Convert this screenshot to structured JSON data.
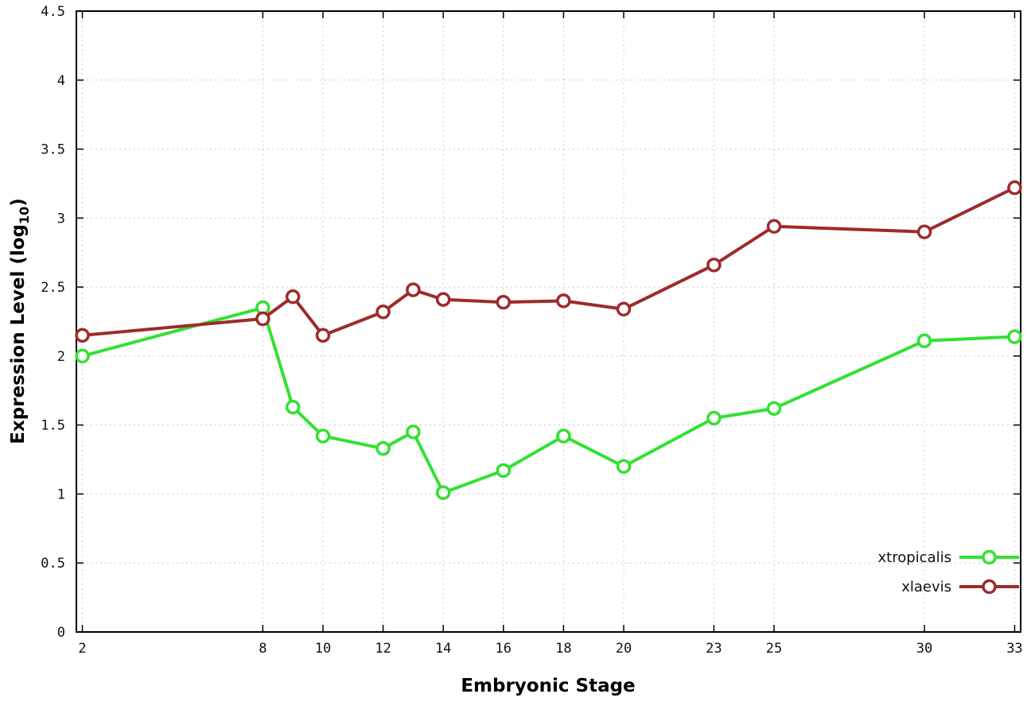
{
  "chart_data": {
    "type": "line",
    "title": "",
    "xlabel": "Embryonic Stage",
    "ylabel": "Expression Level (log10)",
    "ylabel_parts": {
      "pre": "Expression Level (log",
      "sub": "10",
      "post": ")"
    },
    "xlim": [
      2,
      33
    ],
    "x_padding": 0.2,
    "ylim": [
      0,
      4.5
    ],
    "xticks": [
      2,
      8,
      10,
      12,
      14,
      16,
      18,
      20,
      23,
      25,
      30,
      33
    ],
    "xtick_labels": [
      "2",
      "8",
      "10",
      "12",
      "14",
      "16",
      "18",
      "20",
      "23",
      "25",
      "30",
      "33"
    ],
    "yticks": [
      0,
      0.5,
      1,
      1.5,
      2,
      2.5,
      3,
      3.5,
      4,
      4.5
    ],
    "ytick_labels": [
      "0",
      "0.5",
      "1",
      "1.5",
      "2",
      "2.5",
      "3",
      "3.5",
      "4",
      "4.5"
    ],
    "grid": true,
    "grid_style": "dotted",
    "grid_color": "#cccccc",
    "axis_color": "#000000",
    "background": "#ffffff",
    "marker": "open-circle",
    "legend_position": "bottom-right-inside",
    "x": [
      2,
      8,
      9,
      10,
      12,
      13,
      14,
      16,
      18,
      20,
      23,
      25,
      30,
      33
    ],
    "series": [
      {
        "name": "xtropicalis",
        "color": "#32e132",
        "values": [
          2.0,
          2.35,
          1.63,
          1.42,
          1.33,
          1.45,
          1.01,
          1.17,
          1.42,
          1.2,
          1.55,
          1.62,
          2.11,
          2.14
        ]
      },
      {
        "name": "xlaevis",
        "color": "#9e2a2b",
        "values": [
          2.15,
          2.27,
          2.43,
          2.15,
          2.32,
          2.48,
          2.41,
          2.39,
          2.4,
          2.34,
          2.66,
          2.94,
          2.9,
          3.22
        ]
      }
    ]
  }
}
